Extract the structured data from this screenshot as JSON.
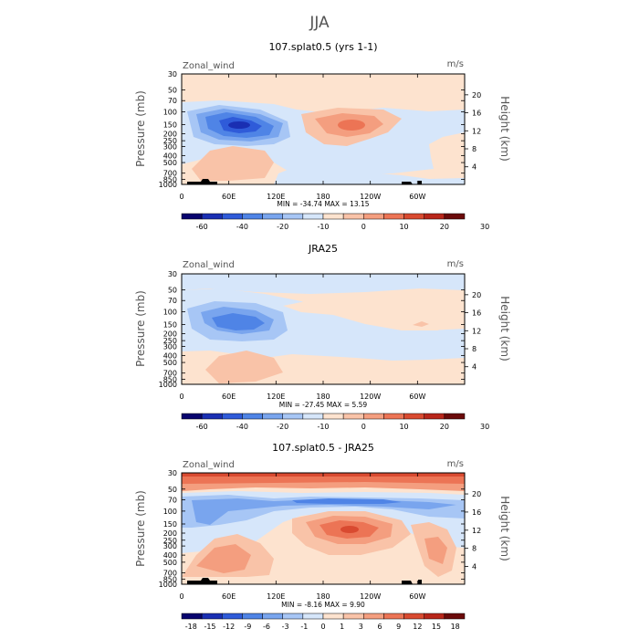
{
  "suptitle": "JJA",
  "colors": {
    "bg": "#fde3cf",
    "light_blue": "#d6e6fa",
    "frame": "#000000"
  },
  "palette_main": [
    "#08046e",
    "#1a2fb3",
    "#2f5bd9",
    "#4f84e6",
    "#79a5ee",
    "#a7c6f5",
    "#d6e6fa",
    "#fde3cf",
    "#f9c3a8",
    "#f49e7f",
    "#ec7455",
    "#d94a30",
    "#b8261a",
    "#6b0a0a"
  ],
  "palette_diff": [
    "#08046e",
    "#1a2fb3",
    "#2f5bd9",
    "#4f84e6",
    "#79a5ee",
    "#a7c6f5",
    "#d6e6fa",
    "#fde3cf",
    "#f9c3a8",
    "#f49e7f",
    "#ec7455",
    "#d94a30",
    "#b8261a",
    "#6b0a0a"
  ],
  "chart_data": [
    {
      "type": "heatmap",
      "title": "107.splat0.5 (yrs 1-1)",
      "field_label": "Zonal_wind",
      "units": "m/s",
      "ylabel": "Pressure (mb)",
      "ylabel_right": "Height (km)",
      "pressure_ticks": [
        "30",
        "50",
        "70",
        "100",
        "150",
        "200",
        "250",
        "300",
        "400",
        "500",
        "700",
        "850",
        "1000"
      ],
      "height_ticks": [
        "20",
        "16",
        "12",
        "8",
        "4"
      ],
      "lon_ticks": [
        "0",
        "60E",
        "120E",
        "180",
        "120W",
        "60W"
      ],
      "stats": "MIN = -34.74  MAX =  13.15",
      "min": -34.74,
      "max": 13.15,
      "colorbar_labels": [
        "-60",
        "-40",
        "-20",
        "-10",
        "0",
        "10",
        "20",
        "30"
      ]
    },
    {
      "type": "heatmap",
      "title": "JRA25",
      "field_label": "Zonal_wind",
      "units": "m/s",
      "ylabel": "Pressure (mb)",
      "ylabel_right": "Height (km)",
      "pressure_ticks": [
        "30",
        "50",
        "70",
        "100",
        "150",
        "200",
        "250",
        "300",
        "400",
        "500",
        "700",
        "850",
        "1000"
      ],
      "height_ticks": [
        "20",
        "16",
        "12",
        "8",
        "4"
      ],
      "lon_ticks": [
        "0",
        "60E",
        "120E",
        "180",
        "120W",
        "60W"
      ],
      "stats": "MIN = -27.45  MAX =   5.59",
      "min": -27.45,
      "max": 5.59,
      "colorbar_labels": [
        "-60",
        "-40",
        "-20",
        "-10",
        "0",
        "10",
        "20",
        "30"
      ]
    },
    {
      "type": "heatmap",
      "title": "107.splat0.5 - JRA25",
      "field_label": "Zonal_wind",
      "units": "m/s",
      "ylabel": "Pressure (mb)",
      "ylabel_right": "Height (km)",
      "pressure_ticks": [
        "30",
        "50",
        "70",
        "100",
        "150",
        "200",
        "250",
        "300",
        "400",
        "500",
        "700",
        "850",
        "1000"
      ],
      "height_ticks": [
        "20",
        "16",
        "12",
        "8",
        "4"
      ],
      "lon_ticks": [
        "0",
        "60E",
        "120E",
        "180",
        "120W",
        "60W"
      ],
      "stats": "MIN =  -8.16  MAX =   9.90",
      "min": -8.16,
      "max": 9.9,
      "colorbar_labels": [
        "-18",
        "-15",
        "-12",
        "-9",
        "-6",
        "-3",
        "-1",
        "0",
        "1",
        "3",
        "6",
        "9",
        "12",
        "15",
        "18"
      ]
    }
  ]
}
